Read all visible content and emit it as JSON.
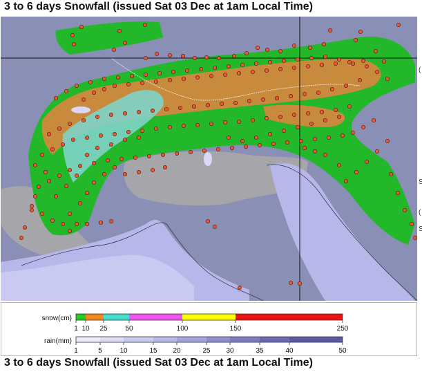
{
  "title": "3 to 6 days Snowfall (issued Sat 03 Dec at 1am Local Time)",
  "right_edge_fragments": [
    "(",
    "S",
    "(",
    "S"
  ],
  "legend": {
    "snow": {
      "label": "snow(cm)",
      "ticks": [
        "1",
        "10",
        "25",
        "50",
        "100",
        "150",
        "250"
      ],
      "stops": [
        1,
        10,
        25,
        50,
        100,
        150,
        250
      ],
      "colors": [
        "#22cc22",
        "#ee8822",
        "#44ddcc",
        "#ee55ee",
        "#ffff00",
        "#ee1111"
      ]
    },
    "rain": {
      "label": "rain(mm)",
      "ticks": [
        "1",
        "5",
        "10",
        "15",
        "20",
        "25",
        "30",
        "35",
        "40",
        "50"
      ],
      "stops": [
        1,
        5,
        10,
        15,
        20,
        25,
        30,
        35,
        40,
        50
      ],
      "colors": [
        "#ececfa",
        "#dcdcf3",
        "#cacaee",
        "#b8b8e6",
        "#a4a4dc",
        "#9090d0",
        "#7c7cc2",
        "#6a6ab4",
        "#5a5aa4"
      ]
    }
  },
  "colors": {
    "land_low": "#8a8fb6",
    "plain": "#a6a6aa",
    "sea": "#b7b7ea",
    "forest": "#22b82a",
    "alpine": "#c88a3c",
    "teal": "#7fd3c8",
    "station": "#ee5533"
  }
}
